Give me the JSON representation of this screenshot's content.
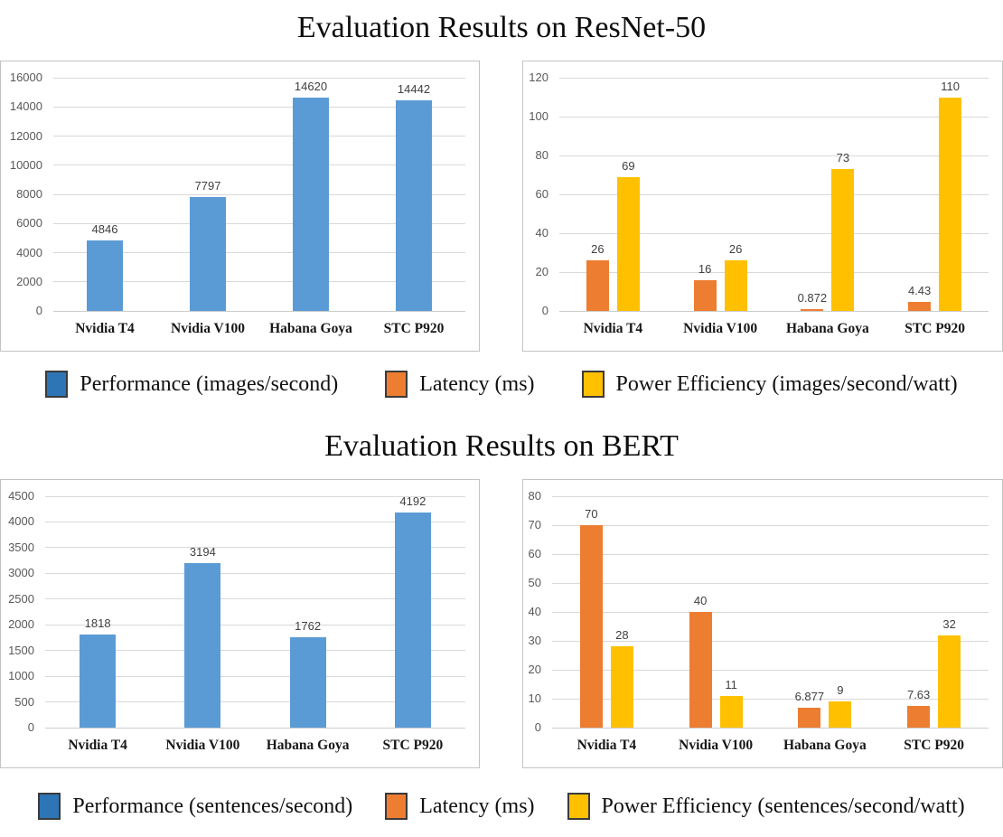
{
  "sections": [
    {
      "title": "Evaluation Results on ResNet-50",
      "legend": [
        {
          "name": "performance-swatch",
          "label": "Performance (images/second)",
          "color": "#2E75B6"
        },
        {
          "name": "latency-swatch",
          "label": "Latency (ms)",
          "color": "#ED7D31"
        },
        {
          "name": "power-swatch",
          "label": "Power Efficiency (images/second/watt)",
          "color": "#FFC000"
        }
      ]
    },
    {
      "title": "Evaluation Results on BERT",
      "legend": [
        {
          "name": "performance-swatch",
          "label": "Performance (sentences/second)",
          "color": "#2E75B6"
        },
        {
          "name": "latency-swatch",
          "label": "Latency (ms)",
          "color": "#ED7D31"
        },
        {
          "name": "power-swatch",
          "label": "Power Efficiency (sentences/second/watt)",
          "color": "#FFC000"
        }
      ]
    }
  ],
  "colors": {
    "bar_blue": "#5B9BD5",
    "bar_orange": "#ED7D31",
    "bar_yellow": "#FFC000",
    "grid": "#D9D9D9",
    "tick_label": "#595959",
    "value_label": "#404040",
    "category_label": "#171717",
    "panel_border": "#C3C3C3",
    "legend_blue": "#2E75B6"
  },
  "chart_data": [
    {
      "type": "bar",
      "section": "Evaluation Results on ResNet-50",
      "categories": [
        "Nvidia T4",
        "Nvidia V100",
        "Habana Goya",
        "STC P920"
      ],
      "series": [
        {
          "name": "Performance (images/second)",
          "color_key": "bar_blue",
          "values": [
            4846,
            7797,
            14620,
            14442
          ],
          "labels": [
            "4846",
            "7797",
            "14620",
            "14442"
          ]
        }
      ],
      "ylim": [
        0,
        16000
      ],
      "ytick_step": 2000,
      "grid": true,
      "legend_position": "below"
    },
    {
      "type": "bar",
      "section": "Evaluation Results on ResNet-50",
      "categories": [
        "Nvidia T4",
        "Nvidia V100",
        "Habana Goya",
        "STC P920"
      ],
      "series": [
        {
          "name": "Latency (ms)",
          "color_key": "bar_orange",
          "values": [
            26,
            16,
            0.872,
            4.43
          ],
          "labels": [
            "26",
            "16",
            "0.872",
            "4.43"
          ]
        },
        {
          "name": "Power Efficiency (images/second/watt)",
          "color_key": "bar_yellow",
          "values": [
            69,
            26,
            73,
            110
          ],
          "labels": [
            "69",
            "26",
            "73",
            "110"
          ]
        }
      ],
      "ylim": [
        0,
        120
      ],
      "ytick_step": 20,
      "grid": true,
      "legend_position": "below"
    },
    {
      "type": "bar",
      "section": "Evaluation Results on BERT",
      "categories": [
        "Nvidia T4",
        "Nvidia V100",
        "Habana Goya",
        "STC P920"
      ],
      "series": [
        {
          "name": "Performance (sentences/second)",
          "color_key": "bar_blue",
          "values": [
            1818,
            3194,
            1762,
            4192
          ],
          "labels": [
            "1818",
            "3194",
            "1762",
            "4192"
          ]
        }
      ],
      "ylim": [
        0,
        4500
      ],
      "ytick_step": 500,
      "grid": true,
      "legend_position": "below"
    },
    {
      "type": "bar",
      "section": "Evaluation Results on BERT",
      "categories": [
        "Nvidia T4",
        "Nvidia V100",
        "Habana Goya",
        "STC P920"
      ],
      "series": [
        {
          "name": "Latency (ms)",
          "color_key": "bar_orange",
          "values": [
            70,
            40,
            6.877,
            7.63
          ],
          "labels": [
            "70",
            "40",
            "6.877",
            "7.63"
          ]
        },
        {
          "name": "Power Efficiency (sentences/second/watt)",
          "color_key": "bar_yellow",
          "values": [
            28,
            11,
            9,
            32
          ],
          "labels": [
            "28",
            "11",
            "9",
            "32"
          ]
        }
      ],
      "ylim": [
        0,
        80
      ],
      "ytick_step": 10,
      "grid": true,
      "legend_position": "below"
    }
  ]
}
